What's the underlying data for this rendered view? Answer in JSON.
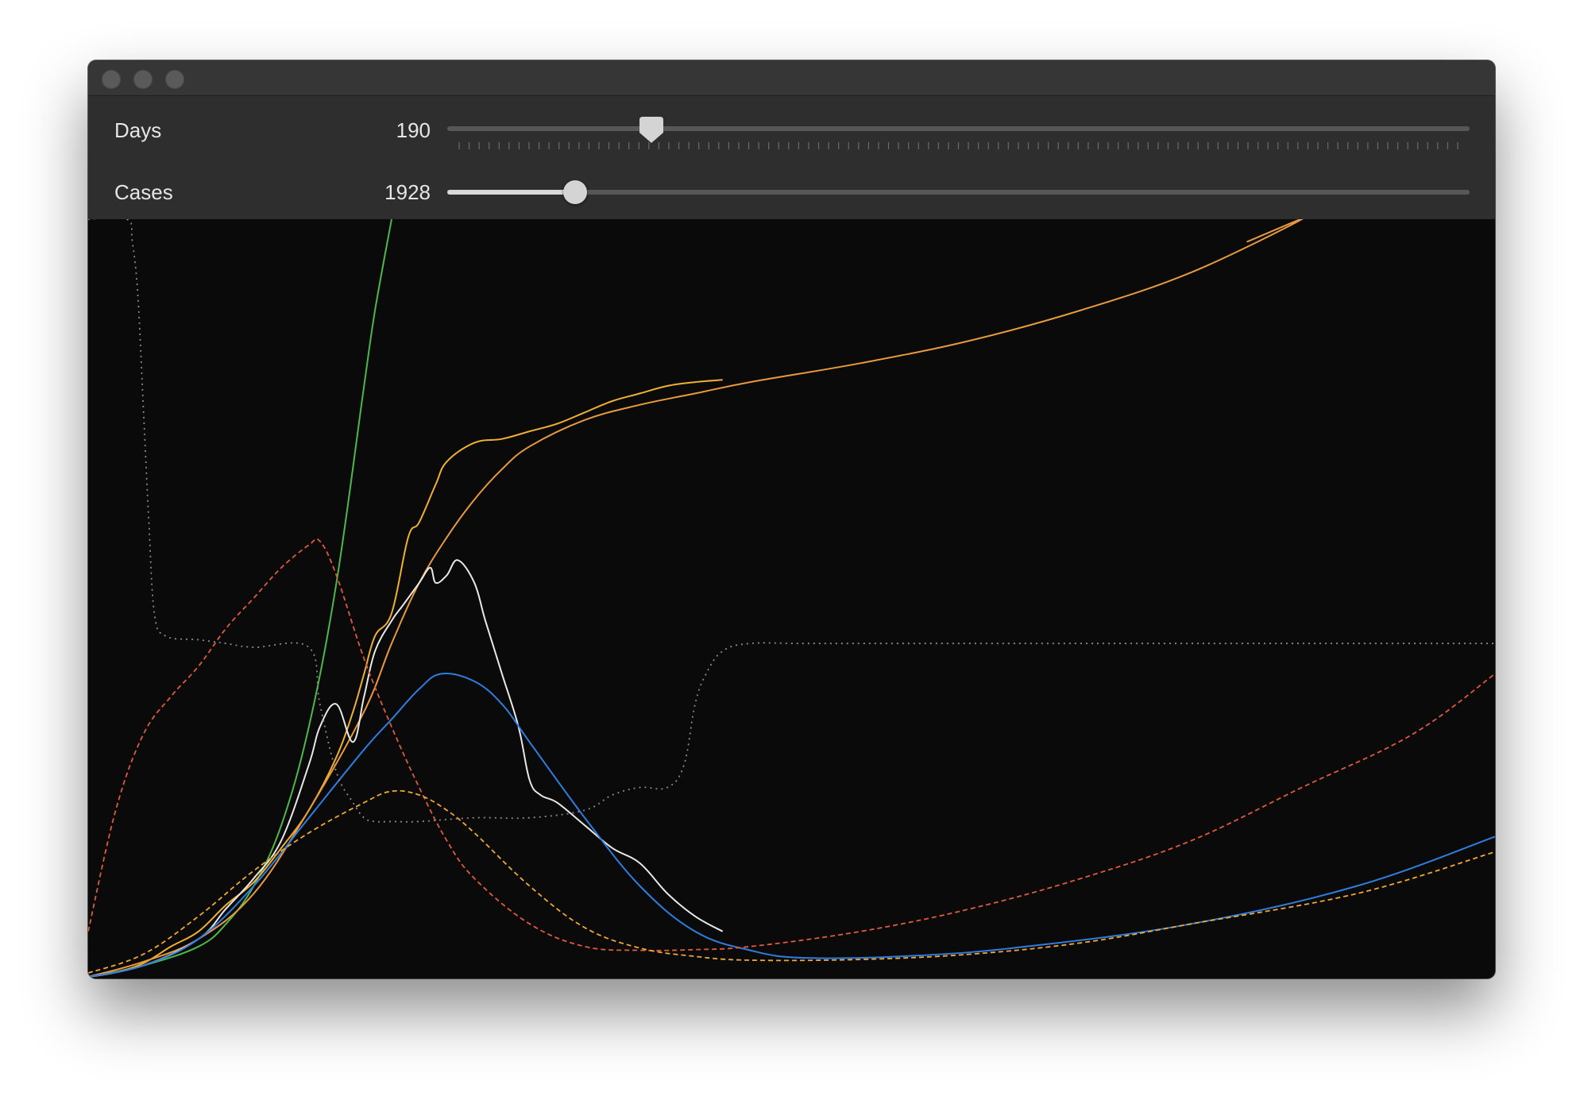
{
  "window": {
    "traffic_lights": [
      "close-button",
      "minimize-button",
      "zoom-button"
    ]
  },
  "controls": {
    "days": {
      "label": "Days",
      "value": "190",
      "fraction": 0.2
    },
    "cases": {
      "label": "Cases",
      "value": "1928",
      "fraction": 0.125
    }
  },
  "chart_data": {
    "type": "line",
    "title": "",
    "xlabel": "",
    "ylabel": "",
    "grid": false,
    "legend": "none",
    "x_range": [
      0,
      255
    ],
    "y_range": [
      0,
      100
    ],
    "series": [
      {
        "style": "solid",
        "color": "#4cb84c",
        "x": [
          0,
          10,
          20,
          25,
          30,
          35,
          40,
          45,
          50,
          52,
          55
        ],
        "y": [
          0,
          1.5,
          4,
          7,
          12,
          20,
          33,
          52,
          78,
          88,
          100
        ]
      },
      {
        "style": "solid",
        "color": "#f0b030",
        "x": [
          0,
          5,
          10,
          15,
          20,
          25,
          30,
          35,
          40,
          45,
          48,
          50,
          52,
          55,
          58,
          60,
          63,
          65,
          70,
          75,
          80,
          85,
          90,
          95,
          100,
          105,
          110,
          115
        ],
        "y": [
          0,
          0.6,
          1.8,
          4,
          6,
          9.5,
          12.5,
          17,
          22,
          29,
          35,
          40,
          45,
          48,
          58,
          60,
          65,
          68,
          70.5,
          71,
          72,
          73,
          74.5,
          76,
          77,
          78,
          78.5,
          78.8
        ]
      },
      {
        "style": "solid",
        "color": "#e89a3c",
        "x": [
          0,
          10,
          20,
          30,
          40,
          50,
          55,
          60,
          65,
          70,
          75,
          80,
          90,
          100,
          110,
          120,
          140,
          160,
          180,
          200,
          220,
          210
        ],
        "y": [
          0,
          2,
          5,
          11,
          22,
          35,
          44,
          52,
          58,
          63,
          67,
          70,
          73.5,
          75.5,
          77,
          78.5,
          81,
          84,
          88,
          93,
          100,
          97
        ]
      },
      {
        "style": "solid",
        "color": "#e8e8e8",
        "x": [
          0,
          10,
          20,
          25,
          30,
          35,
          40,
          42,
          45,
          48,
          50,
          52,
          55,
          57,
          60,
          62,
          63,
          65,
          67,
          70,
          72,
          75,
          78,
          80,
          82,
          85,
          90,
          95,
          100,
          105,
          110,
          115
        ],
        "y": [
          0,
          1.5,
          5,
          9,
          13,
          18,
          28,
          33,
          36,
          31,
          37,
          43,
          47,
          49,
          52,
          54,
          52,
          53,
          55,
          52,
          47,
          40,
          33,
          26,
          24,
          23,
          20,
          17,
          15,
          11,
          8,
          6
        ]
      },
      {
        "style": "solid",
        "color": "#2f7de0",
        "x": [
          0,
          10,
          20,
          30,
          40,
          50,
          55,
          60,
          64,
          70,
          75,
          80,
          90,
          100,
          110,
          120,
          130,
          150,
          170,
          200,
          230,
          255
        ],
        "y": [
          0,
          1.5,
          5,
          12,
          21,
          30,
          34,
          38,
          40,
          39,
          36,
          31,
          21,
          12,
          6,
          3.5,
          2.5,
          2.8,
          4,
          7,
          12,
          18.5
        ]
      },
      {
        "style": "dashed",
        "color": "#e05a3c",
        "x": [
          0,
          5,
          10,
          15,
          20,
          25,
          30,
          35,
          40,
          42,
          45,
          50,
          55,
          60,
          65,
          70,
          80,
          90,
          100,
          110,
          120,
          140,
          160,
          180,
          200,
          220,
          240,
          255
        ],
        "y": [
          6,
          22,
          32,
          37,
          41,
          46,
          50,
          54,
          57,
          57.5,
          53,
          42,
          33,
          25,
          18,
          13,
          7,
          4,
          3.5,
          3.6,
          4,
          6,
          9,
          13,
          18,
          25,
          32,
          40
        ]
      },
      {
        "style": "dashed",
        "color": "#f0a830",
        "x": [
          0,
          10,
          20,
          30,
          40,
          50,
          55,
          60,
          65,
          70,
          80,
          90,
          100,
          110,
          120,
          140,
          160,
          180,
          200,
          230,
          255
        ],
        "y": [
          0.5,
          3,
          8,
          14,
          19,
          23,
          24.5,
          24,
          22,
          19,
          12,
          6.5,
          3.8,
          2.7,
          2.2,
          2.3,
          3,
          4.5,
          7,
          11,
          16.5
        ]
      },
      {
        "style": "dotted",
        "color": "#8a8a8a",
        "x": [
          0,
          7,
          8,
          9,
          10,
          11,
          12,
          14,
          20,
          25,
          30,
          40,
          42,
          45,
          48,
          50,
          52,
          55,
          60,
          70,
          80,
          90,
          95,
          100,
          105,
          108,
          110,
          112,
          115,
          120,
          130,
          150,
          180,
          210,
          235,
          255
        ],
        "y": [
          100,
          100,
          97,
          90,
          75,
          60,
          48,
          45,
          44.5,
          44,
          43.5,
          43.5,
          36,
          27,
          23,
          21,
          20.5,
          20.5,
          20.5,
          21,
          21,
          22,
          24,
          25,
          25,
          28,
          36,
          40,
          43,
          44,
          44,
          44,
          44,
          44,
          44,
          44
        ]
      }
    ]
  }
}
